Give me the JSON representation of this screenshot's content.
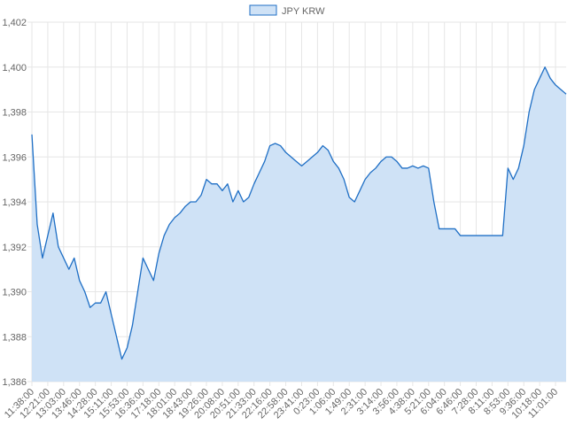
{
  "chart_data": {
    "type": "line",
    "fill": true,
    "grid": true,
    "legend": "top",
    "categories": [
      "11:38:00",
      null,
      null,
      "12:21:00",
      null,
      null,
      "13:03:00",
      null,
      null,
      "13:46:00",
      null,
      null,
      "14:28:00",
      null,
      null,
      "15:11:00",
      null,
      null,
      "15:53:00",
      null,
      null,
      "16:36:00",
      null,
      null,
      "17:18:00",
      null,
      null,
      "18:01:00",
      null,
      null,
      "18:43:00",
      null,
      null,
      "19:26:00",
      null,
      null,
      "20:08:00",
      null,
      null,
      "20:51:00",
      null,
      null,
      "21:33:00",
      null,
      null,
      "22:16:00",
      null,
      null,
      "22:58:00",
      null,
      null,
      "23:41:00",
      null,
      null,
      "0:23:00",
      null,
      null,
      "1:06:00",
      null,
      null,
      "1:49:00",
      null,
      null,
      "2:31:00",
      null,
      null,
      "3:14:00",
      null,
      null,
      "3:56:00",
      null,
      null,
      "4:38:00",
      null,
      null,
      "5:21:00",
      null,
      null,
      "6:04:00",
      null,
      null,
      "6:46:00",
      null,
      null,
      "7:28:00",
      null,
      null,
      "8:11:00",
      null,
      null,
      "8:53:00",
      null,
      null,
      "9:36:00",
      null,
      null,
      "10:18:00",
      null,
      null,
      "11:01:00",
      null,
      null
    ],
    "series": [
      {
        "name": "JPY KRW",
        "color": "#1f6fc5",
        "fill": "#cfe2f6",
        "values": [
          1397,
          1393,
          1391.5,
          1392.5,
          1393.5,
          1392,
          1391.5,
          1391,
          1391.5,
          1390.5,
          1390,
          1389.3,
          1389.5,
          1389.5,
          1390,
          1389,
          1388,
          1387,
          1387.5,
          1388.5,
          1390,
          1391.5,
          1391,
          1390.5,
          1391.7,
          1392.5,
          1393,
          1393.3,
          1393.5,
          1393.8,
          1394,
          1394,
          1394.3,
          1395,
          1394.8,
          1394.8,
          1394.5,
          1394.8,
          1394,
          1394.5,
          1394,
          1394.2,
          1394.8,
          1395.3,
          1395.8,
          1396.5,
          1396.6,
          1396.5,
          1396.2,
          1396,
          1395.8,
          1395.6,
          1395.8,
          1396,
          1396.2,
          1396.5,
          1396.3,
          1395.8,
          1395.5,
          1395,
          1394.2,
          1394,
          1394.5,
          1395,
          1395.3,
          1395.5,
          1395.8,
          1396,
          1396,
          1395.8,
          1395.5,
          1395.5,
          1395.6,
          1395.5,
          1395.6,
          1395.5,
          1394,
          1392.8,
          1392.8,
          1392.8,
          1392.8,
          1392.5,
          1392.5,
          1392.5,
          1392.5,
          1392.5,
          1392.5,
          1392.5,
          1392.5,
          1392.5,
          1395.5,
          1395,
          1395.5,
          1396.5,
          1398,
          1399,
          1399.5,
          1400,
          1399.5,
          1399.2,
          1399,
          1398.8
        ]
      }
    ],
    "ylim": [
      1386,
      1402
    ],
    "yticks": [
      {
        "value": 1386,
        "label": "1,386"
      },
      {
        "value": 1388,
        "label": "1,388"
      },
      {
        "value": 1390,
        "label": "1,390"
      },
      {
        "value": 1392,
        "label": "1,392"
      },
      {
        "value": 1394,
        "label": "1,394"
      },
      {
        "value": 1396,
        "label": "1,396"
      },
      {
        "value": 1398,
        "label": "1,398"
      },
      {
        "value": 1400,
        "label": "1,400"
      },
      {
        "value": 1402,
        "label": "1,402"
      }
    ]
  }
}
